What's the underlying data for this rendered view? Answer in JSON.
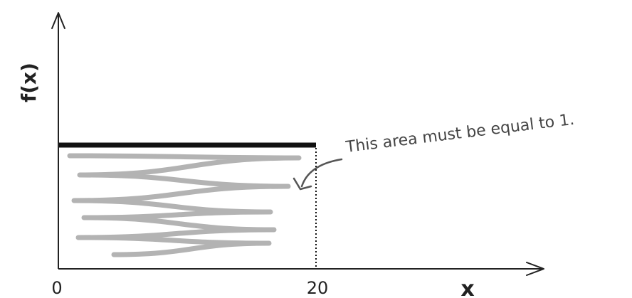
{
  "chart_data": {
    "type": "area",
    "title": "",
    "xlabel": "x",
    "ylabel": "f(x)",
    "x_ticks": [
      {
        "value": 0,
        "label": "0"
      },
      {
        "value": 20,
        "label": "20"
      }
    ],
    "xlim": [
      0,
      27
    ],
    "series": [
      {
        "x": [
          0,
          20
        ],
        "y": [
          1,
          1
        ]
      }
    ],
    "shaded_region": {
      "x_from": 0,
      "x_to": 20,
      "fill": "scribble"
    },
    "annotations": [
      {
        "text": "This area must be equal to 1.",
        "points_to": "shaded_region"
      }
    ],
    "grid": false,
    "colors": {
      "axis": "#222222",
      "density_line": "#111111",
      "shading": "#9a9a9a",
      "annotation": "#555555"
    }
  }
}
